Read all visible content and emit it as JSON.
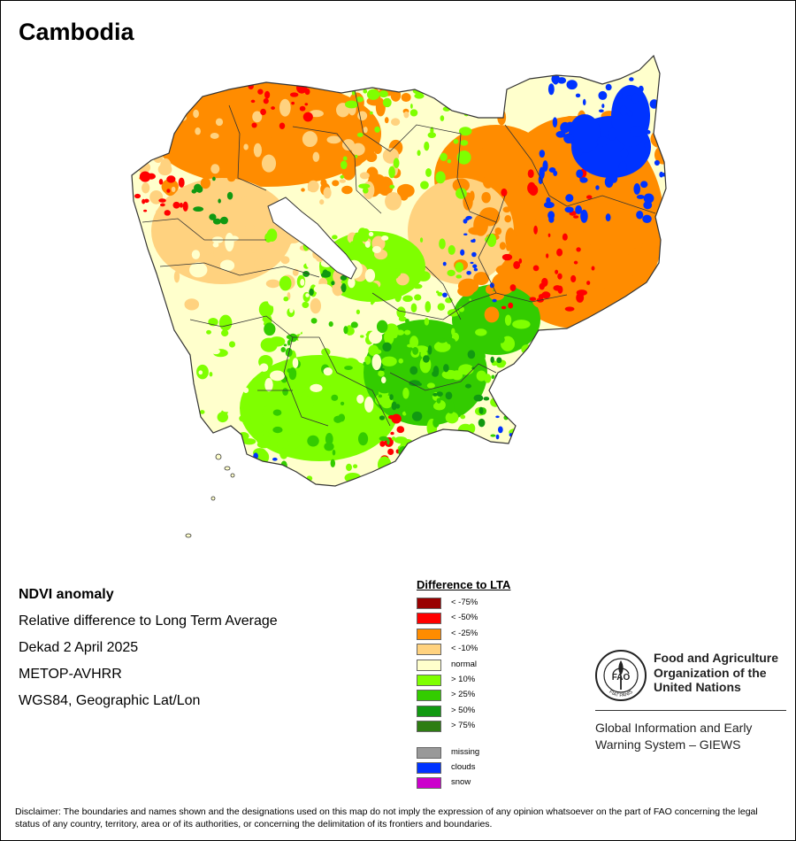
{
  "map": {
    "title": "Cambodia",
    "colors": {
      "outside": "#ffffff",
      "lake": "#ffffff",
      "border": "#333333",
      "normal": "#ffffcc",
      "lt10": "#ffd27f",
      "lt25": "#ff8c00",
      "lt50": "#ff0000",
      "lt75": "#990000",
      "gt10": "#7fff00",
      "gt25": "#33cc00",
      "gt50": "#119911",
      "gt75": "#2e7d12",
      "clouds": "#0033ff"
    }
  },
  "info": {
    "product": "NDVI anomaly",
    "description": "Relative difference to Long Term Average",
    "period": "Dekad 2 April 2025",
    "sensor": "METOP-AVHRR",
    "projection": "WGS84, Geographic Lat/Lon"
  },
  "legend": {
    "title": "Difference to LTA",
    "classes": [
      {
        "label": "< -75%",
        "color": "#990000"
      },
      {
        "label": "< -50%",
        "color": "#ff0000"
      },
      {
        "label": "< -25%",
        "color": "#ff8c00"
      },
      {
        "label": "< -10%",
        "color": "#ffd27f"
      },
      {
        "label": "normal",
        "color": "#ffffcc"
      },
      {
        "label": "> 10%",
        "color": "#7fff00"
      },
      {
        "label": "> 25%",
        "color": "#33cc00"
      },
      {
        "label": "> 50%",
        "color": "#119911"
      },
      {
        "label": "> 75%",
        "color": "#2e7d12"
      }
    ],
    "extra": [
      {
        "label": "missing",
        "color": "#999999"
      },
      {
        "label": "clouds",
        "color": "#0033ff"
      },
      {
        "label": "snow",
        "color": "#cc00cc"
      }
    ]
  },
  "org": {
    "logo_text": "FAO",
    "logo_motto": "FIAT PANIS",
    "name_lines": [
      "Food and Agriculture",
      "Organization of the",
      "United Nations"
    ],
    "system_lines": [
      "Global Information and Early",
      "Warning System – GIEWS"
    ]
  },
  "disclaimer": "Disclaimer: The boundaries and names shown and the designations used on this map do not imply the expression of any opinion whatsoever on the part of FAO concerning the legal status of any country, territory, area or of its authorities, or concerning the delimitation of its frontiers and boundaries."
}
